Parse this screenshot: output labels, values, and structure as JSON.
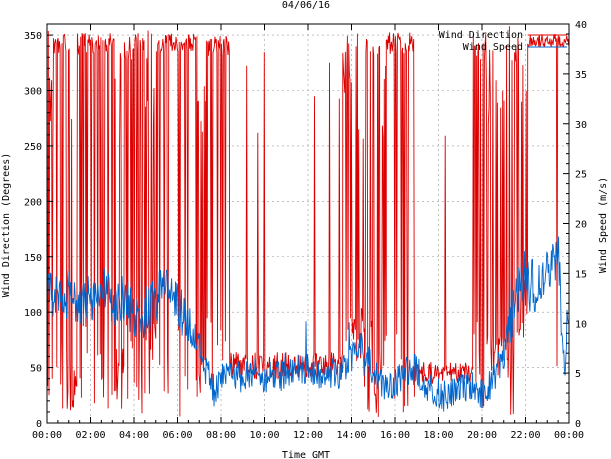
{
  "chart_data": {
    "type": "line",
    "title": "04/06/16",
    "xlabel": "Time GMT",
    "ylabel_left": "Wind Direction (Degrees)",
    "ylabel_right": "Wind Speed (m/s)",
    "x_ticks": [
      "00:00",
      "02:00",
      "04:00",
      "06:00",
      "08:00",
      "10:00",
      "12:00",
      "14:00",
      "16:00",
      "18:00",
      "20:00",
      "22:00",
      "00:00"
    ],
    "x_range_hours": [
      0,
      24
    ],
    "y_left_range": [
      0,
      360
    ],
    "y_left_ticks": [
      0,
      50,
      100,
      150,
      200,
      250,
      300,
      350
    ],
    "y_right_range": [
      0,
      40
    ],
    "y_right_ticks": [
      0,
      5,
      10,
      15,
      20,
      25,
      30,
      35,
      40
    ],
    "grid": true,
    "legend_position": "top-right",
    "series": [
      {
        "name": "Wind Direction",
        "axis": "left",
        "color": "#dd0000",
        "segments": [
          {
            "start": 0.0,
            "end": 0.3,
            "level": 20,
            "spread": 25,
            "flip": 0.25
          },
          {
            "start": 0.3,
            "end": 1.1,
            "level": 343,
            "spread": 10,
            "flip": 0.22
          },
          {
            "start": 1.1,
            "end": 1.4,
            "level": 30,
            "spread": 20,
            "flip": 0.3
          },
          {
            "start": 1.4,
            "end": 3.1,
            "level": 342,
            "spread": 10,
            "flip": 0.22
          },
          {
            "start": 3.1,
            "end": 3.5,
            "level": 40,
            "spread": 30,
            "flip": 0.3
          },
          {
            "start": 3.5,
            "end": 4.5,
            "level": 340,
            "spread": 12,
            "flip": 0.3
          },
          {
            "start": 4.5,
            "end": 5.0,
            "level": 60,
            "spread": 40,
            "flip": 0.35
          },
          {
            "start": 5.0,
            "end": 6.9,
            "level": 343,
            "spread": 9,
            "flip": 0.25
          },
          {
            "start": 6.9,
            "end": 7.3,
            "level": 40,
            "spread": 25,
            "flip": 0.3
          },
          {
            "start": 7.3,
            "end": 8.4,
            "level": 340,
            "spread": 10,
            "flip": 0.25
          },
          {
            "start": 8.4,
            "end": 13.6,
            "level": 52,
            "spread": 12,
            "flip": 0.03
          },
          {
            "start": 13.6,
            "end": 14.0,
            "level": 320,
            "spread": 30,
            "flip": 0.4
          },
          {
            "start": 14.0,
            "end": 14.6,
            "level": 80,
            "spread": 25,
            "flip": 0.3
          },
          {
            "start": 14.6,
            "end": 15.3,
            "level": 340,
            "spread": 15,
            "flip": 0.45
          },
          {
            "start": 15.3,
            "end": 15.6,
            "level": 60,
            "spread": 25,
            "flip": 0.3
          },
          {
            "start": 15.6,
            "end": 16.9,
            "level": 343,
            "spread": 10,
            "flip": 0.15
          },
          {
            "start": 16.9,
            "end": 19.6,
            "level": 45,
            "spread": 10,
            "flip": 0.03
          },
          {
            "start": 19.6,
            "end": 20.2,
            "level": 340,
            "spread": 15,
            "flip": 0.5
          },
          {
            "start": 20.2,
            "end": 21.2,
            "level": 60,
            "spread": 20,
            "flip": 0.35
          },
          {
            "start": 21.2,
            "end": 21.7,
            "level": 340,
            "spread": 20,
            "flip": 0.45
          },
          {
            "start": 21.7,
            "end": 22.1,
            "level": 100,
            "spread": 30,
            "flip": 0.3
          },
          {
            "start": 22.1,
            "end": 24.0,
            "level": 345,
            "spread": 6,
            "flip": 0.04
          }
        ]
      },
      {
        "name": "Wind Speed",
        "axis": "right",
        "color": "#0066cc",
        "points": [
          [
            0.0,
            13.5
          ],
          [
            0.5,
            12.5
          ],
          [
            1.0,
            13
          ],
          [
            1.5,
            12
          ],
          [
            2.0,
            12.5
          ],
          [
            2.5,
            14.5
          ],
          [
            3.0,
            12
          ],
          [
            3.5,
            12.5
          ],
          [
            4.0,
            10.5
          ],
          [
            4.5,
            11
          ],
          [
            5.0,
            12
          ],
          [
            5.5,
            14.5
          ],
          [
            6.0,
            12
          ],
          [
            6.5,
            10
          ],
          [
            7.0,
            8
          ],
          [
            7.4,
            5.5
          ],
          [
            7.7,
            3
          ],
          [
            8.0,
            4.5
          ],
          [
            8.5,
            5
          ],
          [
            9.0,
            4.5
          ],
          [
            9.5,
            5
          ],
          [
            10.0,
            4.5
          ],
          [
            10.5,
            5
          ],
          [
            11.0,
            4.5
          ],
          [
            11.5,
            5.5
          ],
          [
            12.0,
            5.5
          ],
          [
            12.5,
            5
          ],
          [
            13.0,
            5
          ],
          [
            13.5,
            5
          ],
          [
            14.0,
            6.5
          ],
          [
            14.5,
            8
          ],
          [
            15.0,
            5
          ],
          [
            15.5,
            3.5
          ],
          [
            16.0,
            4
          ],
          [
            16.5,
            5
          ],
          [
            17.0,
            5.5
          ],
          [
            17.5,
            3.5
          ],
          [
            18.0,
            3
          ],
          [
            18.5,
            3
          ],
          [
            19.0,
            3.5
          ],
          [
            19.5,
            4
          ],
          [
            20.0,
            3
          ],
          [
            20.5,
            4
          ],
          [
            21.0,
            7
          ],
          [
            21.5,
            12
          ],
          [
            22.0,
            15
          ],
          [
            22.5,
            13
          ],
          [
            23.0,
            15
          ],
          [
            23.5,
            17
          ],
          [
            23.8,
            5
          ],
          [
            24.0,
            13
          ]
        ]
      }
    ]
  }
}
